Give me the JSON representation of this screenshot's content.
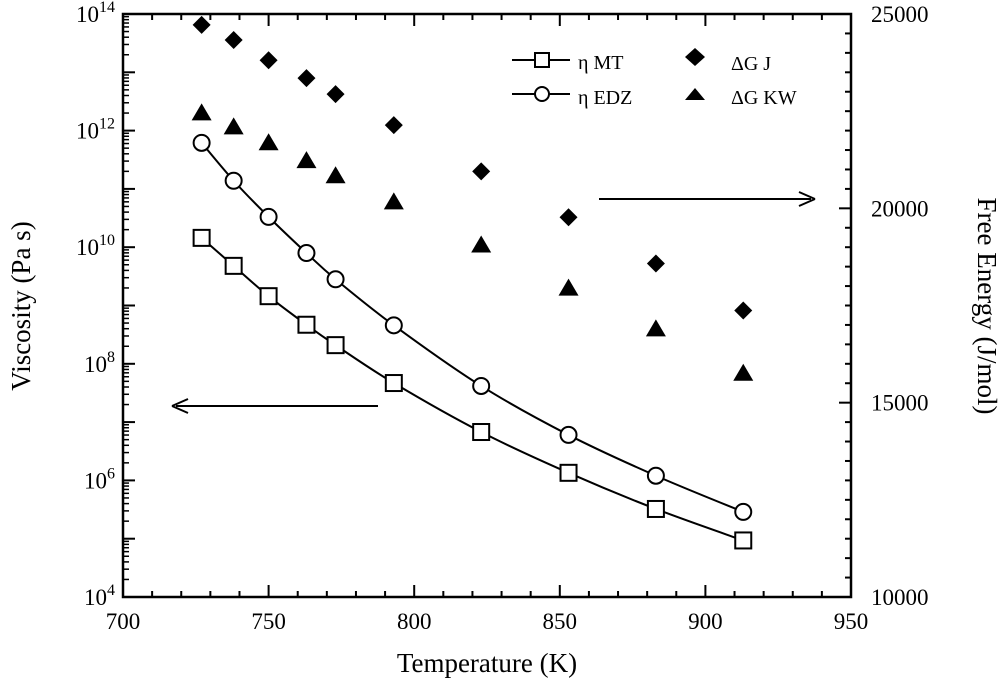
{
  "chart_data": {
    "type": "scatter",
    "title": "",
    "xlabel": "Temperature (K)",
    "ylabel": "Viscosity (Pa s)",
    "y2label": "Free Energy (J/mol)",
    "xlim": [
      700,
      950
    ],
    "ylim_log10": [
      4,
      14
    ],
    "y2lim": [
      10000,
      25000
    ],
    "x_ticks": [
      "700",
      "750",
      "800",
      "850",
      "900",
      "950"
    ],
    "y_ticks": [
      {
        "base": "10",
        "exp": "4"
      },
      {
        "base": "10",
        "exp": "6"
      },
      {
        "base": "10",
        "exp": "8"
      },
      {
        "base": "10",
        "exp": "10"
      },
      {
        "base": "10",
        "exp": "12"
      },
      {
        "base": "10",
        "exp": "14"
      }
    ],
    "y2_ticks": [
      "10000",
      "15000",
      "20000",
      "25000"
    ],
    "grid": false,
    "legend_position": "top-right",
    "x": [
      727,
      738,
      750,
      763,
      773,
      793,
      823,
      853,
      883,
      913
    ],
    "series": [
      {
        "name": "η MT",
        "axis": "left",
        "marker": "square-open",
        "line": true,
        "log10_values": [
          10.16,
          9.68,
          9.16,
          8.67,
          8.32,
          7.67,
          6.83,
          6.13,
          5.51,
          4.97
        ]
      },
      {
        "name": "η EDZ",
        "axis": "left",
        "marker": "circle-open",
        "line": true,
        "log10_values": [
          11.79,
          11.14,
          10.52,
          9.9,
          9.45,
          8.66,
          7.62,
          6.78,
          6.08,
          5.46
        ]
      },
      {
        "name": "ΔG J",
        "axis": "right",
        "marker": "diamond-filled",
        "line": false,
        "values": [
          24720,
          24330,
          23810,
          23350,
          22940,
          22140,
          20950,
          19770,
          18580,
          17370
        ]
      },
      {
        "name": "ΔG KW",
        "axis": "right",
        "marker": "triangle-filled",
        "line": false,
        "values": [
          22470,
          22110,
          21700,
          21240,
          20850,
          20180,
          19070,
          17960,
          16910,
          15770
        ]
      }
    ],
    "annotations": [
      {
        "type": "arrow",
        "direction": "left",
        "meaning": "series on left axis"
      },
      {
        "type": "arrow",
        "direction": "right",
        "meaning": "series on right axis"
      }
    ]
  }
}
